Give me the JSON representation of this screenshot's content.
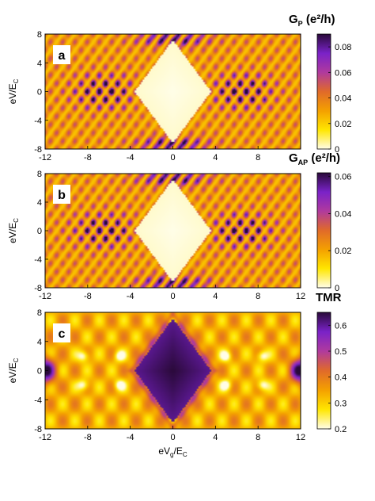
{
  "chart_data": [
    {
      "type": "heatmap",
      "panel_label": "a",
      "xlim": [
        -12,
        12
      ],
      "ylim": [
        -8,
        8
      ],
      "x_ticks": [
        "-12",
        "-8",
        "-4",
        "0",
        "4",
        "8",
        ""
      ],
      "y_ticks": [
        "8",
        "4",
        "0",
        "-4",
        "-8"
      ],
      "ylabel": "eV/E",
      "ylabel_sub": "C",
      "xlabel": "",
      "colorbar": {
        "title": "G",
        "title_sub": "P",
        "title_tail": " (e²/h)",
        "range": [
          0,
          0.09
        ],
        "ticks": [
          {
            "v": 0.08,
            "t": "0.08"
          },
          {
            "v": 0.06,
            "t": "0.06"
          },
          {
            "v": 0.04,
            "t": "0.04"
          },
          {
            "v": 0.02,
            "t": "0.02"
          },
          {
            "v": 0,
            "t": "0"
          }
        ]
      },
      "colormap": [
        "#fffde8",
        "#ffe600",
        "#f4a000",
        "#e06a2a",
        "#b03a9e",
        "#7a22c8",
        "#2a0a3a"
      ],
      "max_value": 0.09
    },
    {
      "type": "heatmap",
      "panel_label": "b",
      "xlim": [
        -12,
        12
      ],
      "ylim": [
        -8,
        8
      ],
      "x_ticks": [
        "-12",
        "-8",
        "-4",
        "0",
        "4",
        "8",
        "12"
      ],
      "y_ticks": [
        "8",
        "4",
        "0",
        "-4",
        "-8"
      ],
      "ylabel": "eV/E",
      "ylabel_sub": "C",
      "xlabel": "",
      "colorbar": {
        "title": "G",
        "title_sub": "AP",
        "title_tail": " (e²/h)",
        "range": [
          0,
          0.062
        ],
        "ticks": [
          {
            "v": 0.06,
            "t": "0.06"
          },
          {
            "v": 0.04,
            "t": "0.04"
          },
          {
            "v": 0.02,
            "t": "0.02"
          },
          {
            "v": 0,
            "t": "0"
          }
        ]
      },
      "colormap": [
        "#fffde8",
        "#ffe600",
        "#f4a000",
        "#e06a2a",
        "#b03a9e",
        "#7a22c8",
        "#2a0a3a"
      ],
      "max_value": 0.062
    },
    {
      "type": "heatmap",
      "panel_label": "c",
      "xlim": [
        -12,
        12
      ],
      "ylim": [
        -8,
        8
      ],
      "x_ticks": [
        "-12",
        "-8",
        "-4",
        "0",
        "4",
        "8",
        "12"
      ],
      "y_ticks": [
        "8",
        "4",
        "0",
        "-4",
        "-8"
      ],
      "ylabel": "eV/E",
      "ylabel_sub": "C",
      "xlabel": "eV",
      "xlabel_sub": "g",
      "xlabel_tail": "/E",
      "xlabel_sub2": "C",
      "colorbar": {
        "title": "TMR",
        "range": [
          0.2,
          0.65
        ],
        "ticks": [
          {
            "v": 0.6,
            "t": "0.6"
          },
          {
            "v": 0.5,
            "t": "0.5"
          },
          {
            "v": 0.4,
            "t": "0.4"
          },
          {
            "v": 0.3,
            "t": "0.3"
          },
          {
            "v": 0.2,
            "t": "0.2"
          }
        ]
      },
      "colormap": [
        "#fffde8",
        "#ffe600",
        "#f4a000",
        "#e06a2a",
        "#b03a9e",
        "#7a22c8",
        "#2a0a3a"
      ],
      "background_value": 0.33,
      "diamond_value": 0.65
    }
  ]
}
